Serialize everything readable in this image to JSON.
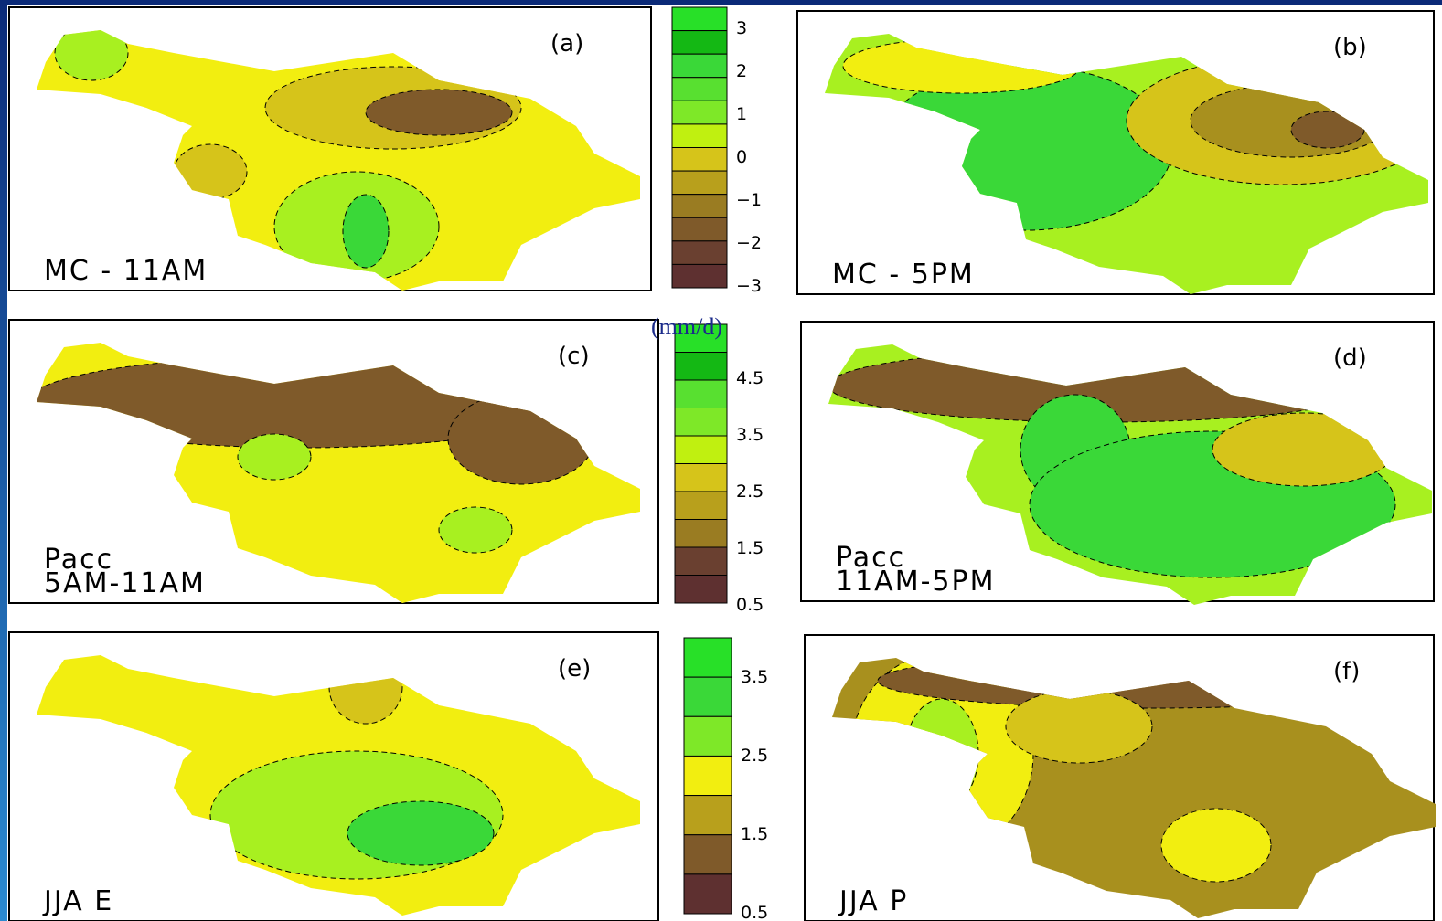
{
  "panels": [
    {
      "tag": "(a)",
      "label": [
        "MC - 11AM"
      ]
    },
    {
      "tag": "(b)",
      "label": [
        "MC - 5PM"
      ]
    },
    {
      "tag": "(c)",
      "label": [
        "Pacc",
        "5AM-11AM"
      ]
    },
    {
      "tag": "(d)",
      "label": [
        "Pacc",
        "11AM-5PM"
      ]
    },
    {
      "tag": "(e)",
      "label": [
        "JJA   E"
      ]
    },
    {
      "tag": "(f)",
      "label": [
        "JJA   P"
      ]
    }
  ],
  "colorbars": [
    {
      "ticks": [
        "3",
        "2",
        "1",
        "0",
        "−1",
        "−2",
        "−3"
      ]
    },
    {
      "unit": "(mm/d)",
      "ticks": [
        "4.5",
        "3.5",
        "2.5",
        "1.5",
        "0.5"
      ]
    },
    {
      "ticks": [
        "3.5",
        "2.5",
        "1.5",
        "0.5"
      ]
    }
  ]
}
